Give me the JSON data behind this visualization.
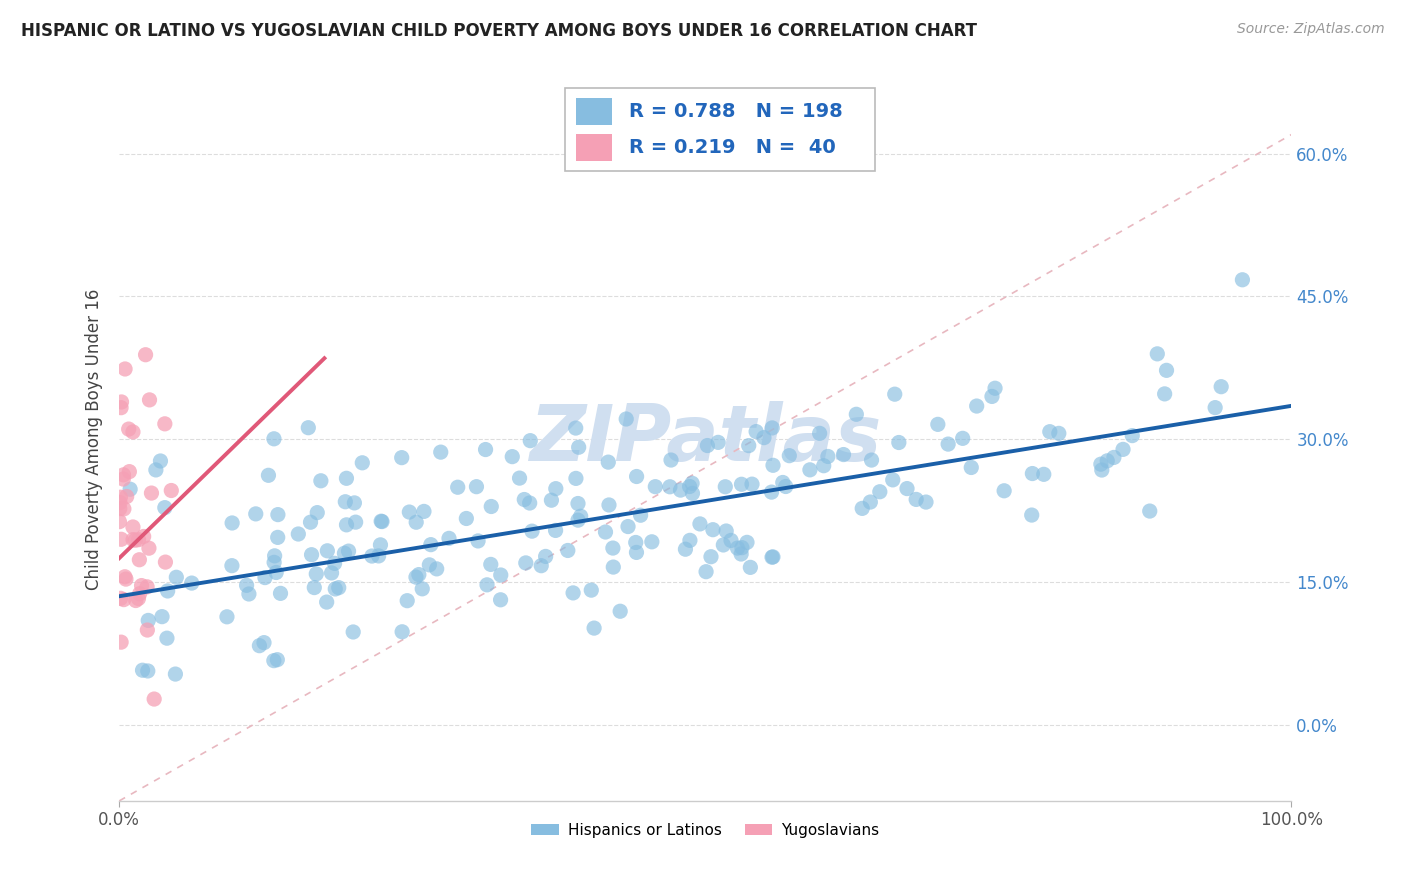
{
  "title": "HISPANIC OR LATINO VS YUGOSLAVIAN CHILD POVERTY AMONG BOYS UNDER 16 CORRELATION CHART",
  "source": "Source: ZipAtlas.com",
  "ylabel": "Child Poverty Among Boys Under 16",
  "xlim": [
    0,
    1.0
  ],
  "ylim": [
    -0.08,
    0.68
  ],
  "yticks": [
    0.0,
    0.15,
    0.3,
    0.45,
    0.6
  ],
  "ytick_labels": [
    "0.0%",
    "15.0%",
    "30.0%",
    "45.0%",
    "60.0%"
  ],
  "xticks": [
    0.0,
    1.0
  ],
  "xtick_labels": [
    "0.0%",
    "100.0%"
  ],
  "blue_R": 0.788,
  "blue_N": 198,
  "pink_R": 0.219,
  "pink_N": 40,
  "blue_color": "#87bde0",
  "pink_color": "#f5a0b5",
  "blue_line_color": "#1a5fa8",
  "pink_line_color": "#e05878",
  "diagonal_color": "#e8b8c0",
  "grid_color": "#dddddd",
  "watermark": "ZIPatlas",
  "watermark_color": "#d0dff0",
  "legend_label_blue": "Hispanics or Latinos",
  "legend_label_pink": "Yugoslavians",
  "blue_slope": 0.2,
  "blue_intercept": 0.135,
  "pink_slope": 1.2,
  "pink_intercept": 0.175,
  "seed": 42
}
